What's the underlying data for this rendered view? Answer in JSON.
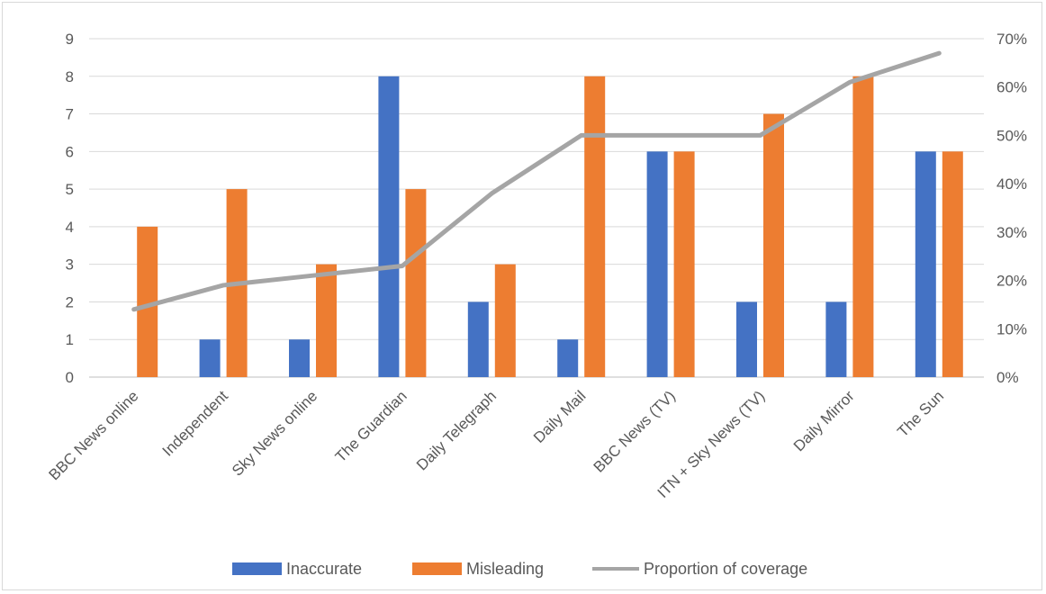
{
  "chart_data": {
    "type": "bar",
    "categories": [
      "BBC News online",
      "Independent",
      "Sky News online",
      "The Guardian",
      "Daily Telegraph",
      "Daily Mail",
      "BBC News (TV)",
      "ITN + Sky News (TV)",
      "Daily Mirror",
      "The Sun"
    ],
    "series": [
      {
        "name": "Inaccurate",
        "type": "bar",
        "axis": "left",
        "color": "#4472c4",
        "values": [
          0,
          1,
          1,
          8,
          2,
          1,
          6,
          2,
          2,
          6
        ]
      },
      {
        "name": "Misleading",
        "type": "bar",
        "axis": "left",
        "color": "#ed7d31",
        "values": [
          4,
          5,
          3,
          5,
          3,
          8,
          6,
          7,
          8,
          6
        ]
      },
      {
        "name": "Proportion of coverage",
        "type": "line",
        "axis": "right",
        "color": "#a5a5a5",
        "values": [
          0.14,
          0.19,
          0.21,
          0.23,
          0.38,
          0.5,
          0.5,
          0.5,
          0.61,
          0.67
        ]
      }
    ],
    "y_left": {
      "ticks": [
        "0",
        "1",
        "2",
        "3",
        "4",
        "5",
        "6",
        "7",
        "8",
        "9"
      ],
      "lim": [
        0,
        9
      ]
    },
    "y_right": {
      "ticks": [
        "0%",
        "10%",
        "20%",
        "30%",
        "40%",
        "50%",
        "60%",
        "70%"
      ],
      "lim": [
        0,
        0.7
      ]
    },
    "grid": true,
    "legend_position": "bottom",
    "legend": [
      "Inaccurate",
      "Misleading",
      "Proportion of coverage"
    ]
  }
}
